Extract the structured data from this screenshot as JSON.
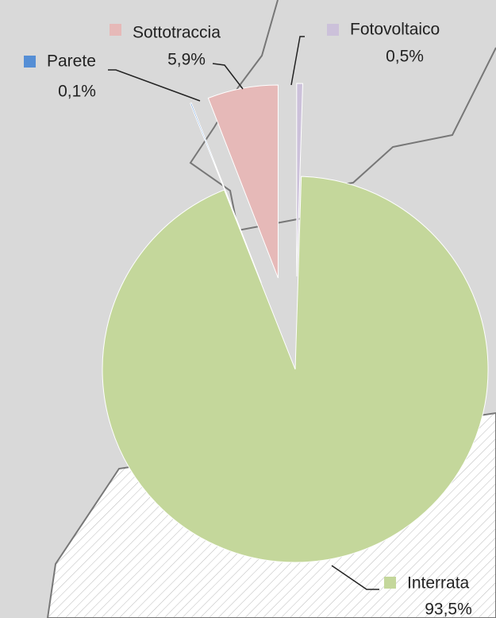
{
  "chart_data": {
    "type": "pie",
    "categories": [
      "Fotovoltaico",
      "Interrata",
      "Parete",
      "Sottotraccia"
    ],
    "values": [
      0.5,
      93.5,
      0.1,
      5.9
    ],
    "value_labels": [
      "0,5%",
      "93,5%",
      "0,1%",
      "5,9%"
    ],
    "colors": [
      "#ccc1da",
      "#c4d79b",
      "#558ed5",
      "#e6b9b8"
    ]
  }
}
